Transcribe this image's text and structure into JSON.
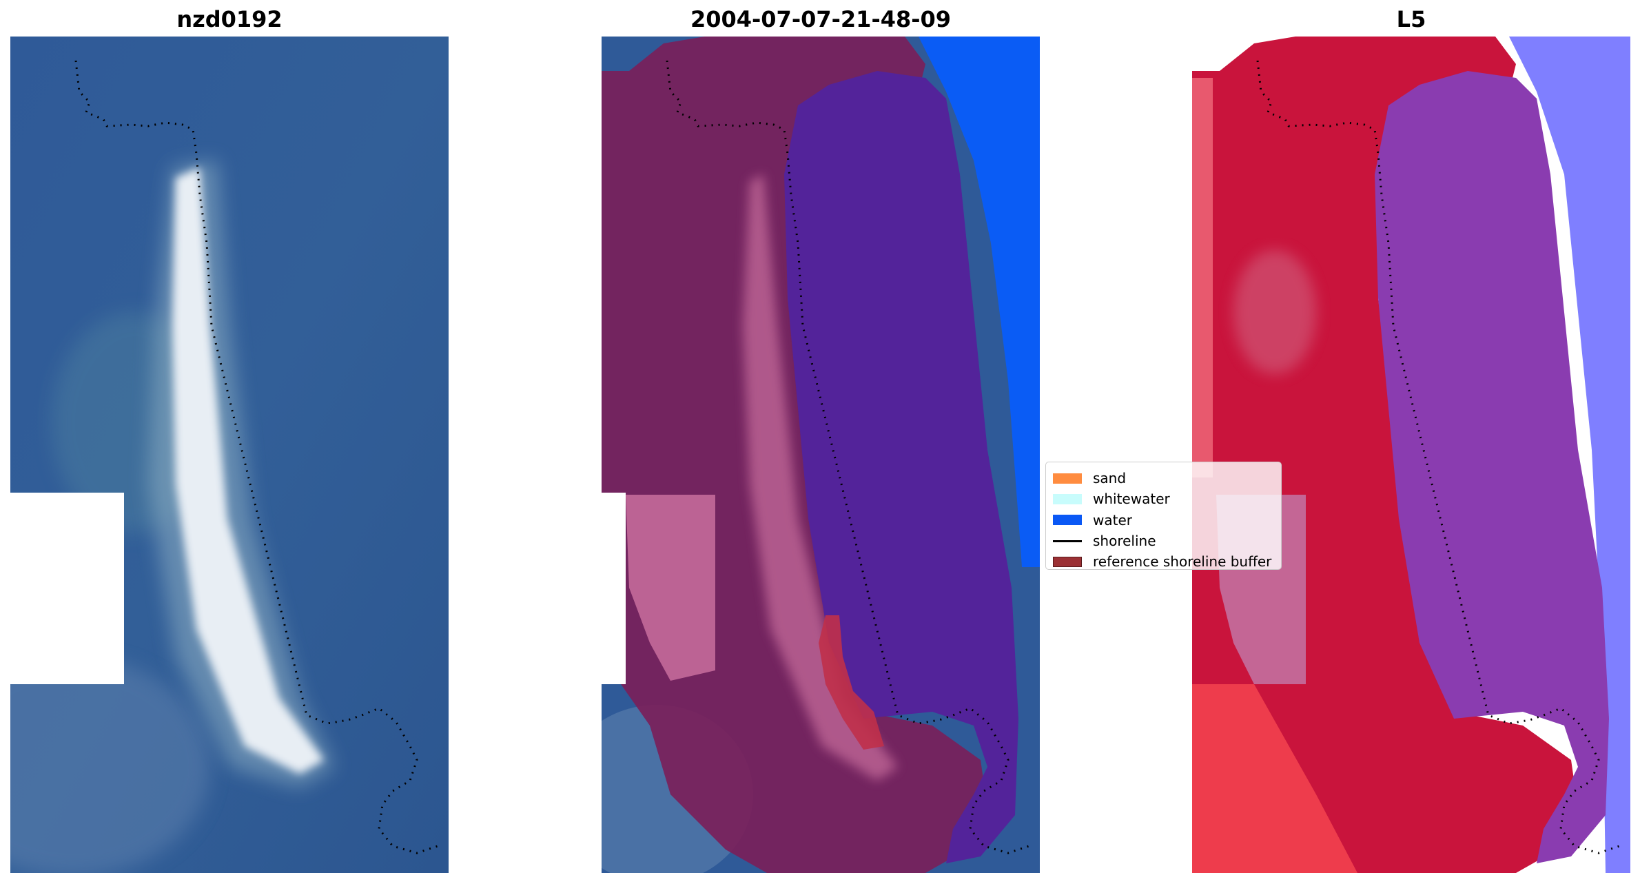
{
  "panels": [
    {
      "title": "nzd0192"
    },
    {
      "title": "2004-07-07-21-48-09"
    },
    {
      "title": "L5"
    }
  ],
  "legend": {
    "items": [
      {
        "label": "sand",
        "color": "#ff8c40",
        "kind": "patch"
      },
      {
        "label": "whitewater",
        "color": "#c8fcfc",
        "kind": "patch"
      },
      {
        "label": "water",
        "color": "#0a58f5",
        "kind": "patch"
      },
      {
        "label": "shoreline",
        "color": "#000000",
        "kind": "line"
      },
      {
        "label": "reference shoreline buffer",
        "color": "#9b3034",
        "kind": "patch"
      }
    ]
  },
  "colors": {
    "imagery_water": "#2e5a96",
    "sand_spit": "#e8eef4",
    "classified_buffer": "#7a1f5a",
    "classified_water": "#53239a",
    "water_class": "#0a5cf5",
    "index_land": "#c9143c",
    "index_water": "#8a3cb0"
  }
}
